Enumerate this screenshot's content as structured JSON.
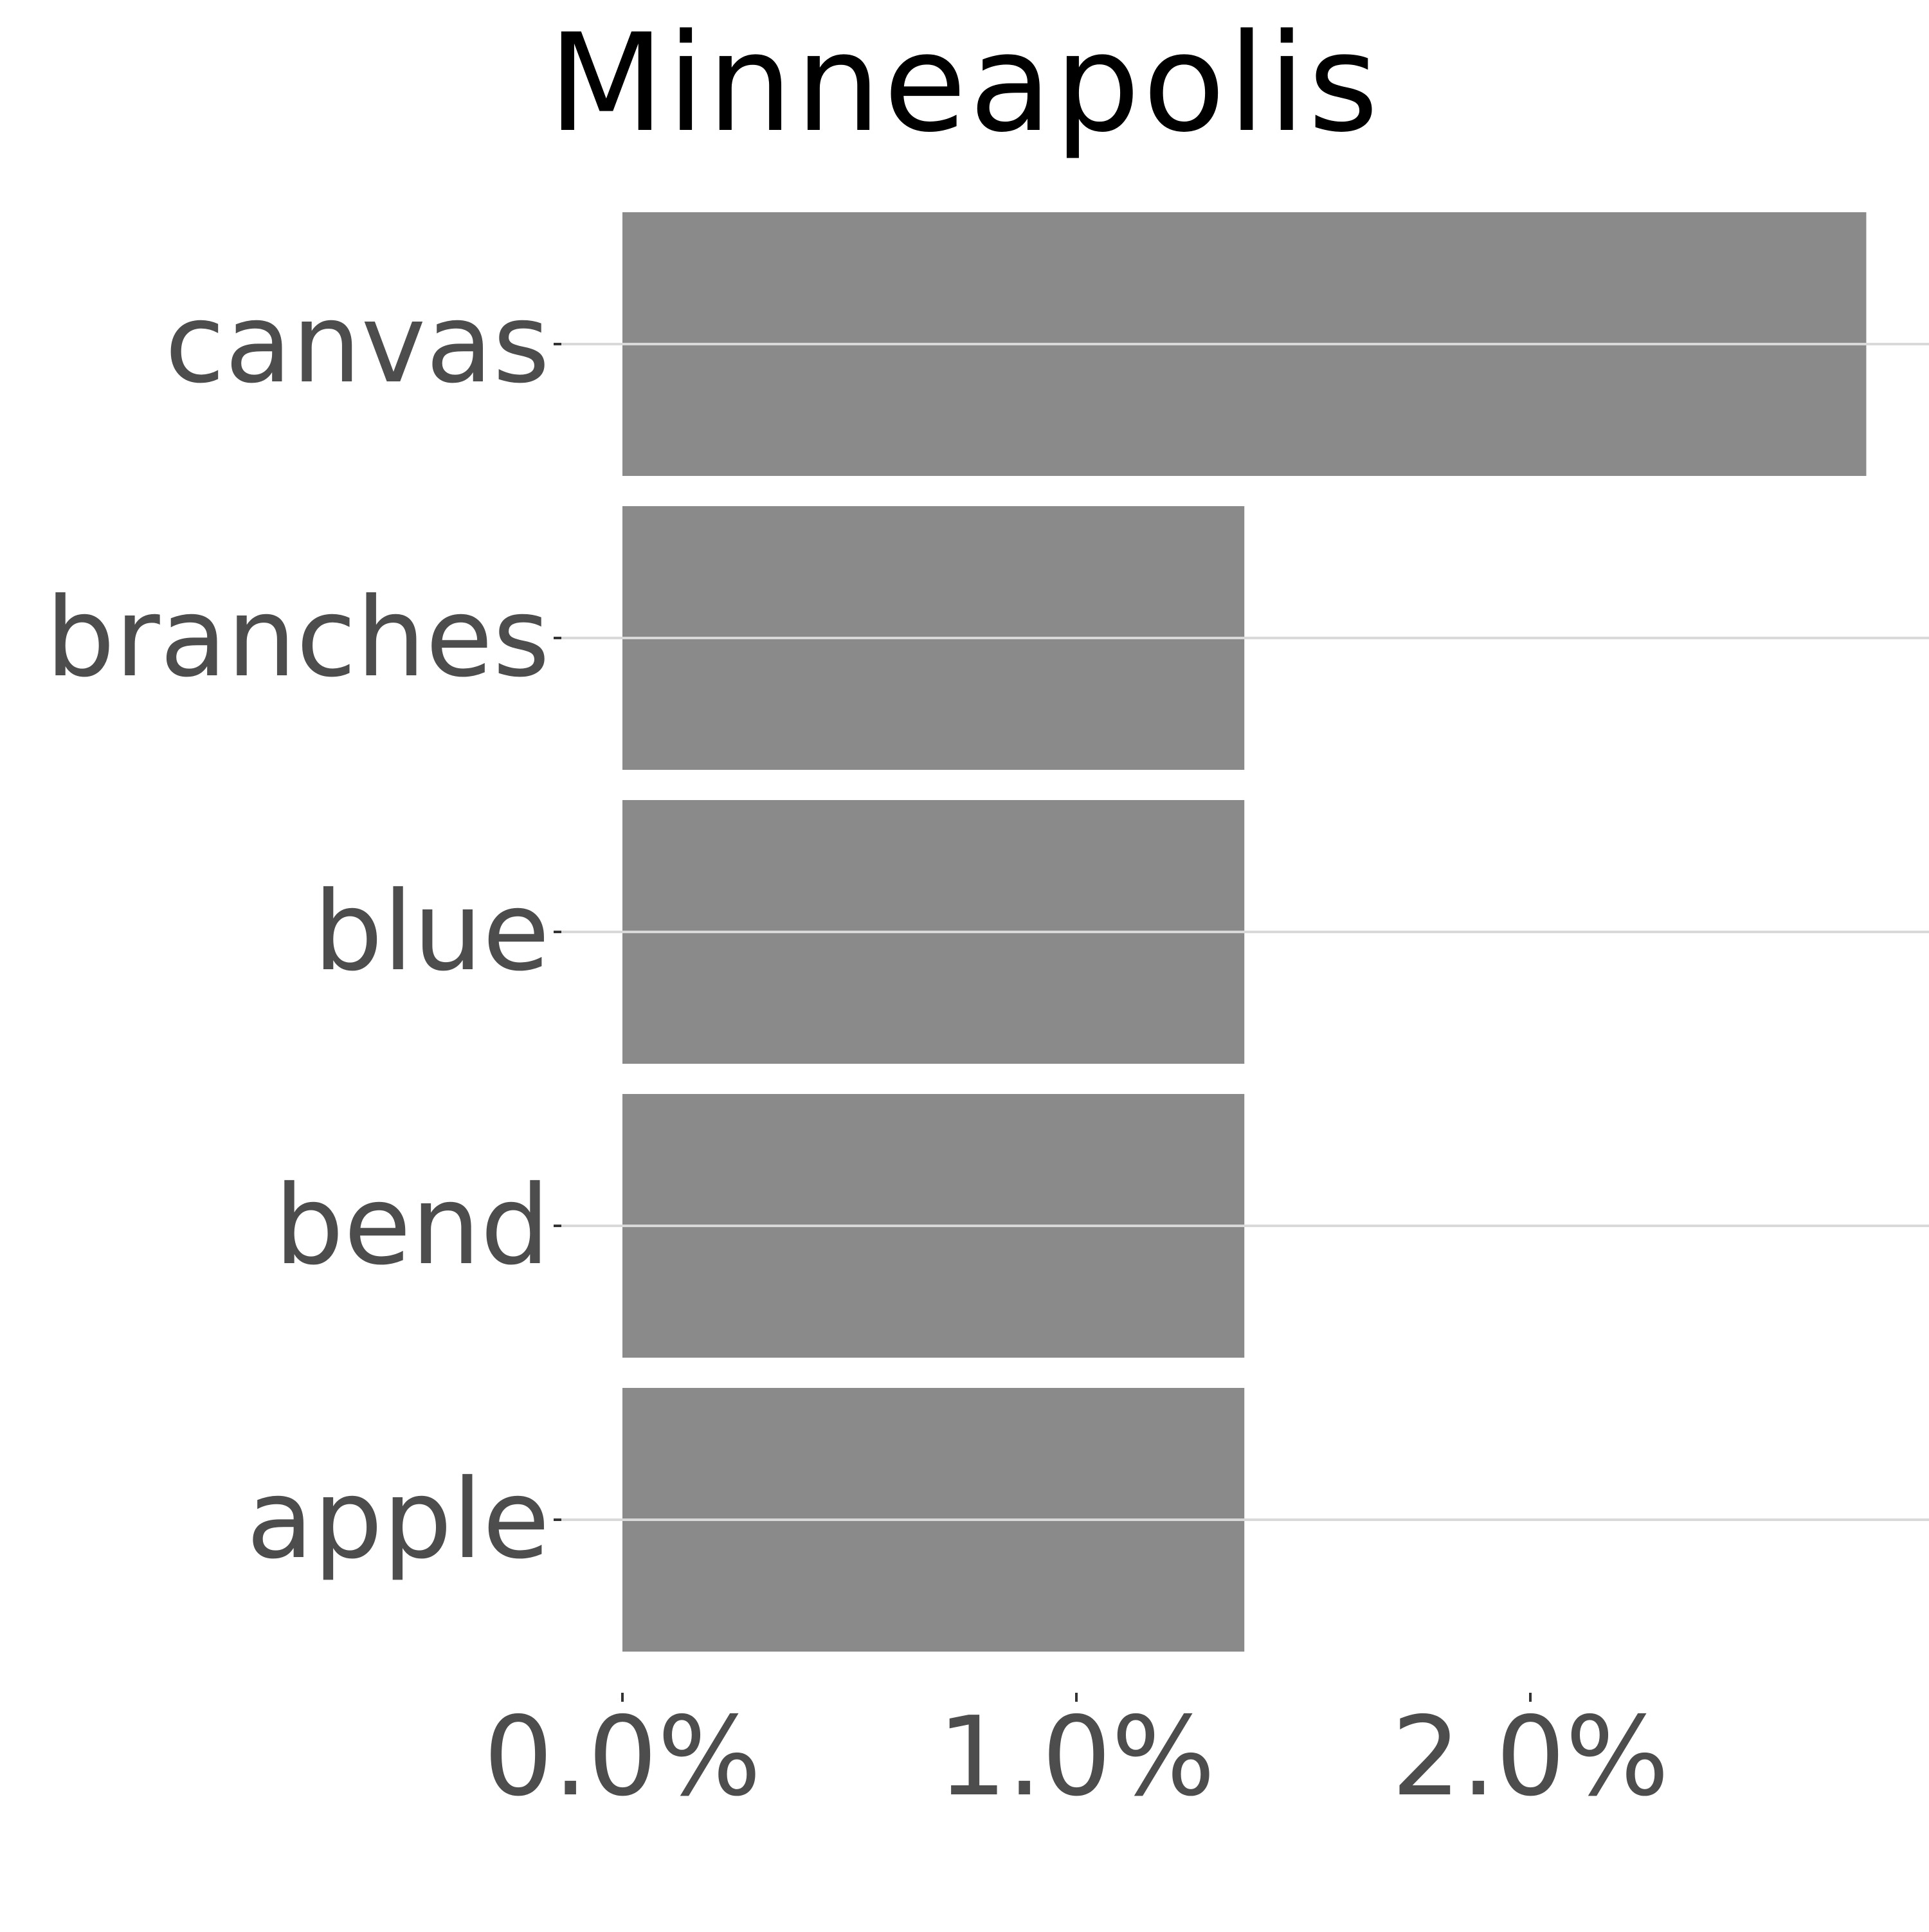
{
  "chart_data": {
    "type": "bar",
    "orientation": "horizontal",
    "title": "Minneapolis",
    "xlabel": "",
    "ylabel": "",
    "categories": [
      "canvas",
      "branches",
      "blue",
      "bend",
      "apple"
    ],
    "values": [
      2.74,
      1.37,
      1.37,
      1.37,
      1.37
    ],
    "xlim": [
      0,
      2.87
    ],
    "xticks": [
      0,
      1,
      2
    ],
    "xtick_labels": [
      "0.0%",
      "1.0%",
      "2.0%"
    ],
    "grid": "horizontal major lines only",
    "legend": "none",
    "colors": {
      "bar": "#8a8a8a",
      "grid": "#d9d9d9",
      "tick_text": "#4d4d4d",
      "title": "#000000"
    }
  }
}
